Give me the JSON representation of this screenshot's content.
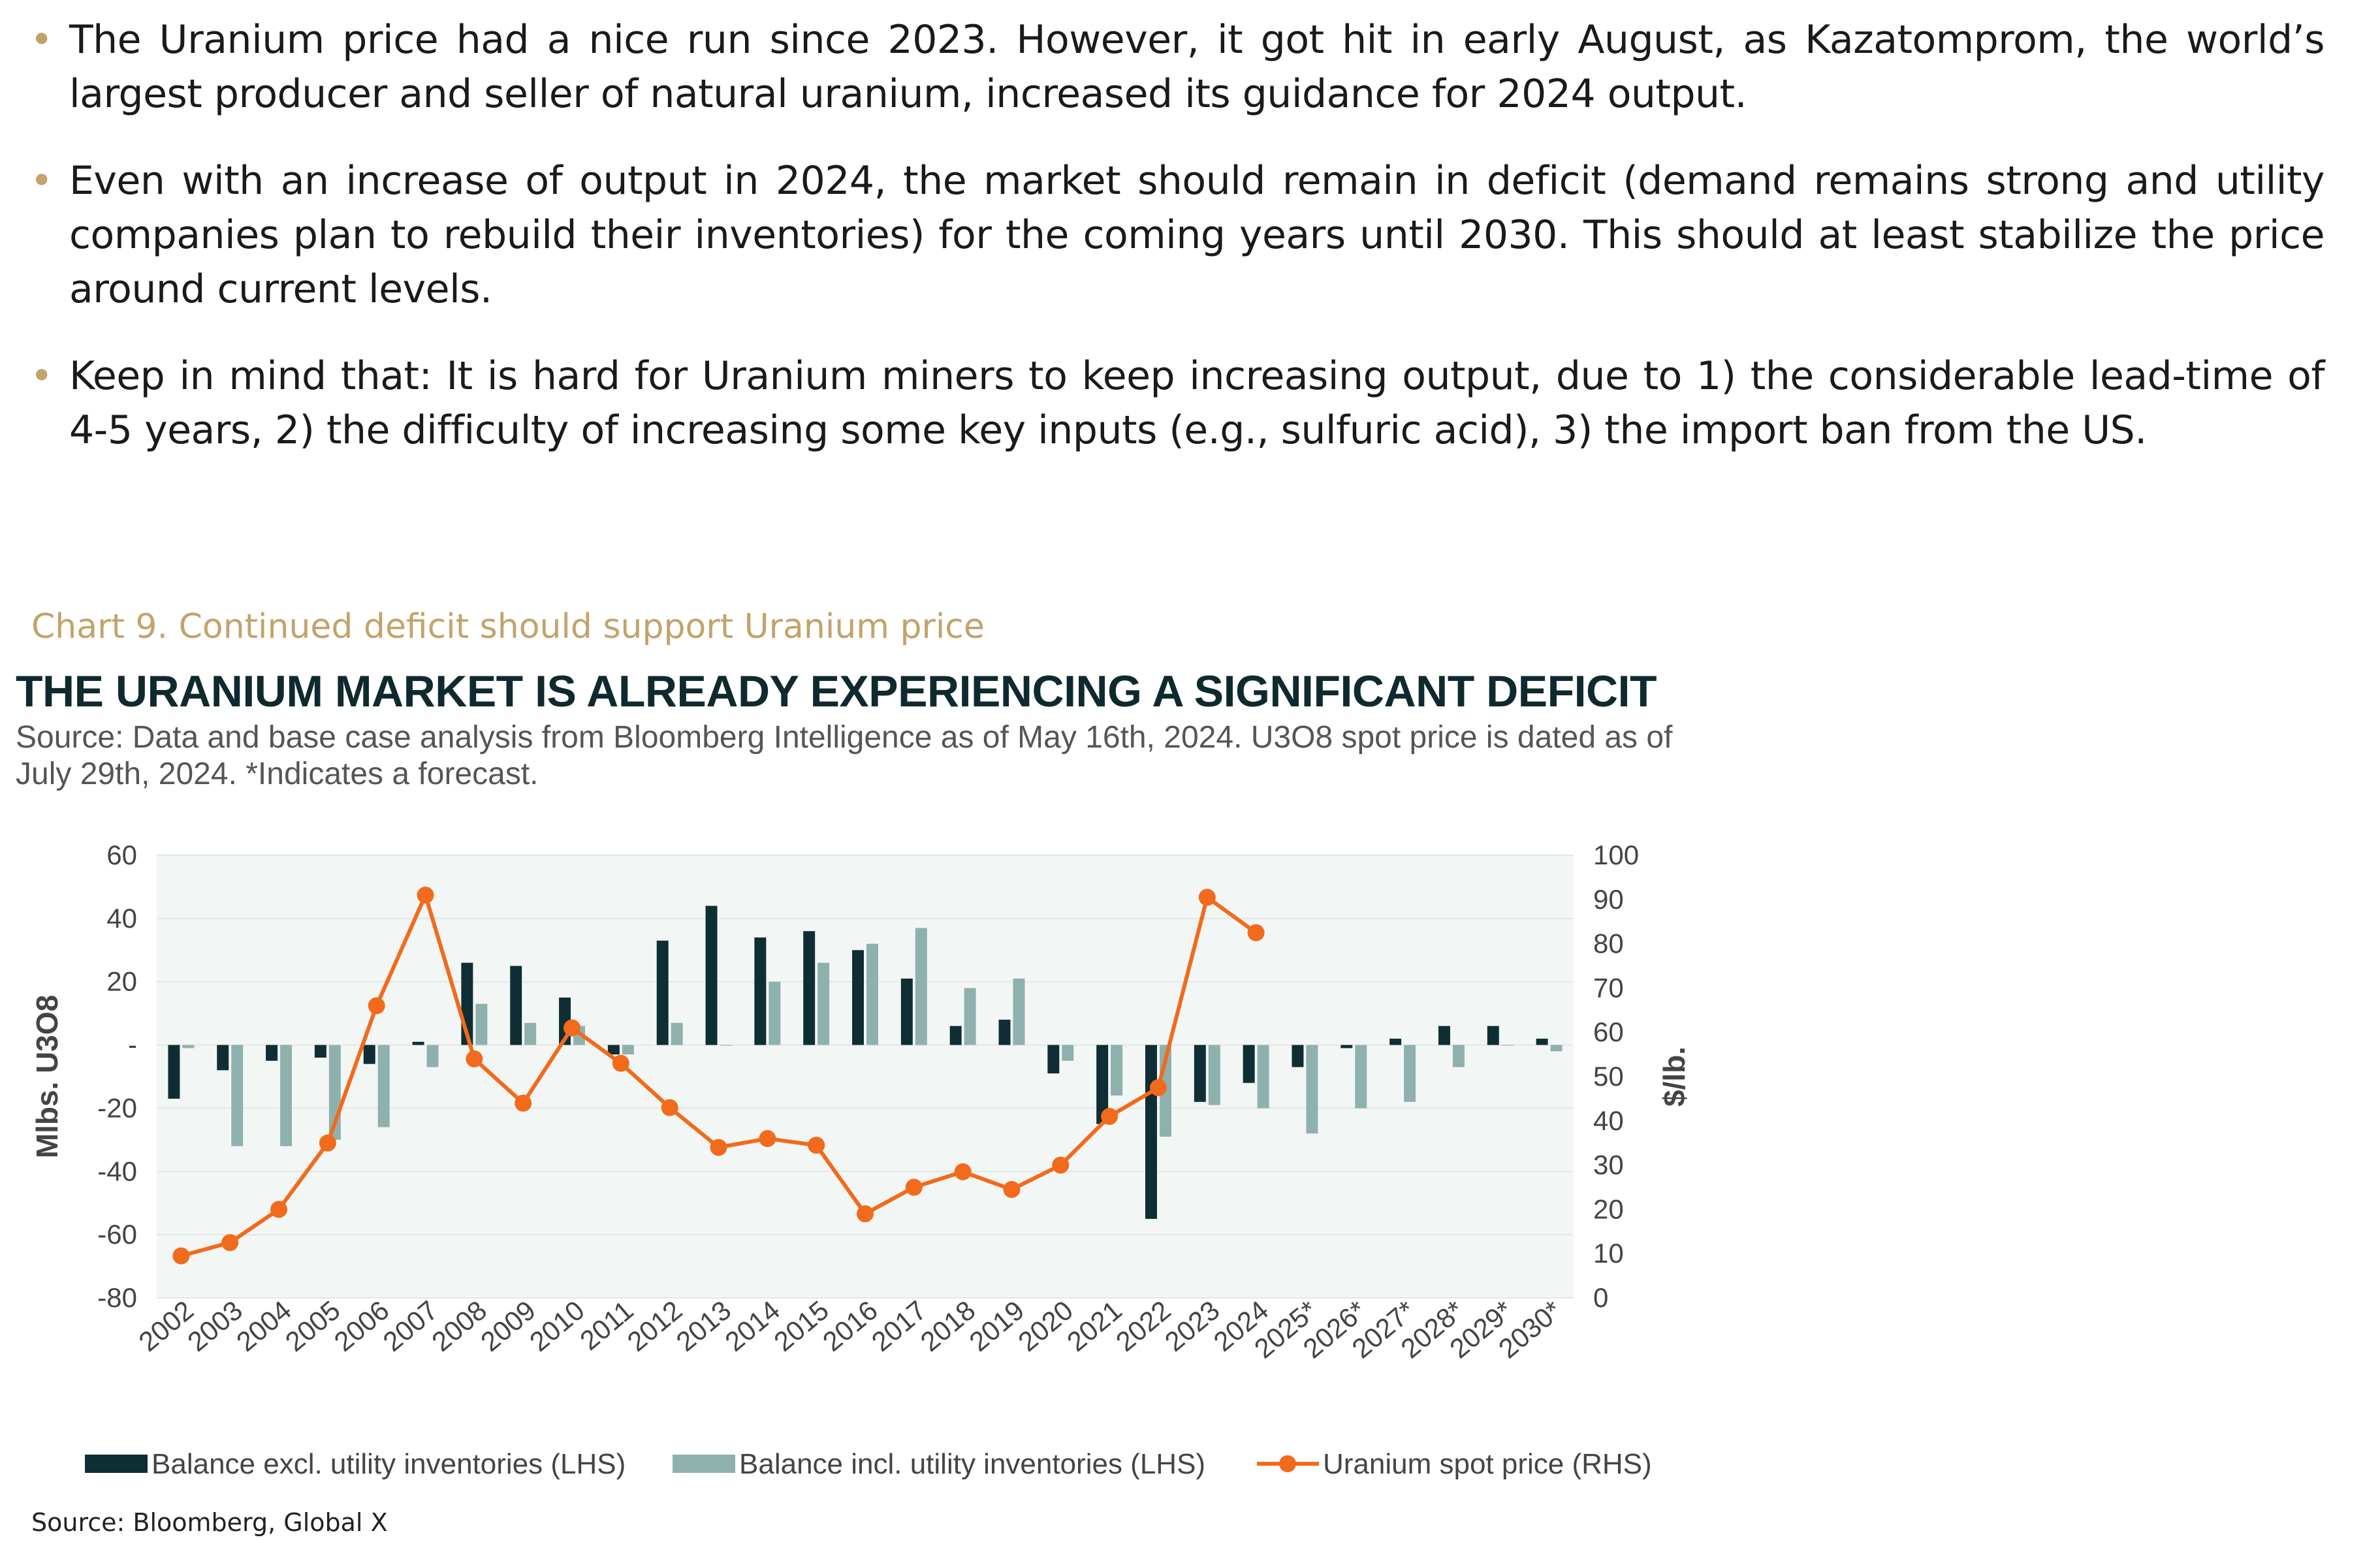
{
  "bullets": [
    "The Uranium price had a nice run since 2023. However, it got hit in early August, as Kazatomprom, the world’s largest producer and seller of natural uranium, increased its guidance for 2024 output.",
    "Even with an increase of output in 2024, the market should remain in deficit (demand remains strong and utility companies plan to rebuild their inventories) for the coming years until 2030. This should at least stabilize the price around current levels.",
    "Keep in mind that: It is hard for Uranium miners to keep increasing output, due to 1) the considerable lead-time of 4-5 years, 2) the difficulty of increasing some key inputs (e.g., sulfuric acid), 3) the import ban from the US."
  ],
  "chart_caption": "Chart 9. Continued deficit should support Uranium price",
  "footer_source": "Source: Bloomberg, Global X",
  "colors": {
    "bar_excl": "#0f2e33",
    "bar_incl": "#8fb1ad",
    "line": "#f26a1b",
    "plot_bg": "#f2f6f5",
    "accent": "#c2a36a"
  },
  "chart_data": {
    "type": "bar+line",
    "title": "THE URANIUM MARKET IS ALREADY EXPERIENCING A SIGNIFICANT DEFICIT",
    "subtitle": "Source: Data and base case analysis from Bloomberg Intelligence as of May 16th, 2024. U3O8 spot price is dated as of July 29th, 2024. *Indicates a forecast.",
    "categories": [
      "2002",
      "2003",
      "2004",
      "2005",
      "2006",
      "2007",
      "2008",
      "2009",
      "2010",
      "2011",
      "2012",
      "2013",
      "2014",
      "2015",
      "2016",
      "2017",
      "2018",
      "2019",
      "2020",
      "2021",
      "2022",
      "2023",
      "2024",
      "2025*",
      "2026*",
      "2027*",
      "2028*",
      "2029*",
      "2030*"
    ],
    "series": [
      {
        "name": "Balance excl. utility inventories (LHS)",
        "type": "bar",
        "axis": "left",
        "values": [
          -17,
          -8,
          -5,
          -4,
          -6,
          1,
          26,
          25,
          15,
          -3,
          33,
          44,
          34,
          36,
          30,
          21,
          6,
          8,
          -9,
          -25,
          -55,
          -18,
          -12,
          -7,
          -1,
          2,
          6,
          6,
          2
        ]
      },
      {
        "name": "Balance incl. utility inventories (LHS)",
        "type": "bar",
        "axis": "left",
        "values": [
          -1,
          -32,
          -32,
          -30,
          -26,
          -7,
          13,
          7,
          6,
          -3,
          7,
          0,
          20,
          26,
          32,
          37,
          18,
          21,
          -5,
          -16,
          -29,
          -19,
          -20,
          -28,
          -20,
          -18,
          -7,
          0,
          -2
        ]
      },
      {
        "name": "Uranium spot price (RHS)",
        "type": "line",
        "axis": "right",
        "values": [
          9.5,
          12.5,
          20,
          35,
          66,
          91,
          54,
          44,
          61,
          53,
          43,
          34,
          36,
          34.5,
          19,
          25,
          28.5,
          24.5,
          30,
          41,
          47.5,
          90.5,
          82.5,
          null,
          null,
          null,
          null,
          null,
          null
        ]
      }
    ],
    "left_axis": {
      "label": "Mlbs. U3O8",
      "min": -80,
      "max": 60,
      "ticks": [
        "60",
        "40",
        "20",
        "-",
        "-20",
        "-40",
        "-60",
        "-80"
      ],
      "tick_values": [
        60,
        40,
        20,
        0,
        -20,
        -40,
        -60,
        -80
      ]
    },
    "right_axis": {
      "label": "$/lb.",
      "min": 0,
      "max": 100,
      "ticks": [
        "100",
        "90",
        "80",
        "70",
        "60",
        "50",
        "40",
        "30",
        "20",
        "10",
        "0"
      ],
      "tick_values": [
        100,
        90,
        80,
        70,
        60,
        50,
        40,
        30,
        20,
        10,
        0
      ]
    },
    "legend_position": "bottom"
  }
}
